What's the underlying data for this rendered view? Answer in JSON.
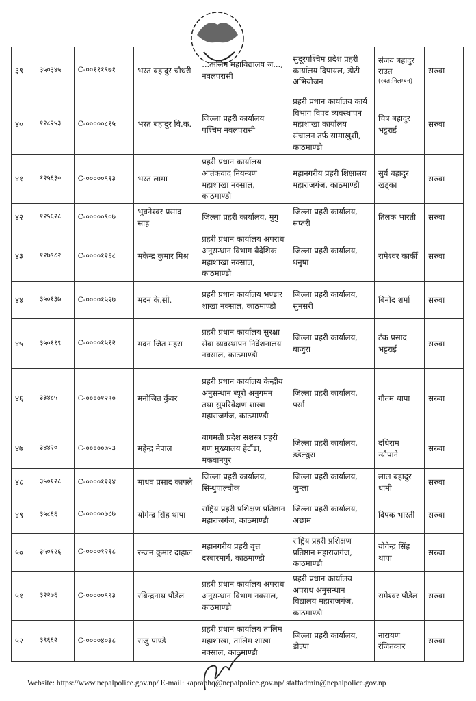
{
  "rows": [
    {
      "sn": "३९",
      "id": "३५०३४५",
      "code": "C-००१११९७१",
      "name": "भरत बहादुर चौधरी",
      "from": "...तालिम महाविद्यालय ज..., नवलपरासी",
      "to": "सुदूरपश्चिम प्रदेश प्रहरी कार्यालय दिपायल, डोटी अभियोजन",
      "replacement": "संजय बहादुर राउत",
      "note": "(स्वत:निलम्बन)",
      "status": "सरुवा"
    },
    {
      "sn": "४०",
      "id": "१२८२५३",
      "code": "C-०००००८१५",
      "name": "भरत बहादुर बि.क.",
      "from": "जिल्ला प्रहरी कार्यालय पश्चिम नवलपरासी",
      "to": "प्रहरी प्रधान कार्यालय कार्य विभाग विपद व्यवस्थापन महाशाखा कार्यालय संचालन तर्फ सामाखुशी, काठमाण्डौ",
      "replacement": "चित्र बहादुर भट्टराई",
      "status": "सरुवा"
    },
    {
      "sn": "४१",
      "id": "१२५६३०",
      "code": "C-०००००९१३",
      "name": "भरत लामा",
      "from": "प्रहरी प्रधान कार्यालय आतंकवाद नियन्त्रण महाशाखा नक्साल, काठमाण्डौ",
      "to": "महानगरीय प्रहरी शिक्षालय महाराजगंज, काठमाण्डौ",
      "replacement": "सुर्य बहादुर खड्का",
      "status": "सरुवा"
    },
    {
      "sn": "४२",
      "id": "१२५६२८",
      "code": "C-०००००९०७",
      "name": "भुवनेश्वर प्रसाद साह",
      "from": "जिल्ला प्रहरी कार्यालय, मुगु",
      "to": "जिल्ला प्रहरी कार्यालय, सप्तरी",
      "replacement": "तिलक भारती",
      "status": "सरुवा"
    },
    {
      "sn": "४३",
      "id": "१२७९८२",
      "code": "C-००००१२६८",
      "name": "मकेन्द्र कुमार मिश्र",
      "from": "प्रहरी प्रधान कार्यालय अपराध अनुसन्धान विभाग बैदेशिक महाशाखा नक्साल, काठमाण्डौ",
      "to": "जिल्ला प्रहरी कार्यालय, धनुषा",
      "replacement": "रामेश्वर कार्की",
      "status": "सरुवा"
    },
    {
      "sn": "४४",
      "id": "३५०१३७",
      "code": "C-००००१५२७",
      "name": "मदन के.सी.",
      "from": "प्रहरी प्रधान कार्यालय भण्डार शाखा नक्साल, काठमाण्डौ",
      "to": "जिल्ला प्रहरी कार्यालय, सुनसरी",
      "replacement": "बिनोद शर्मा",
      "status": "सरुवा"
    },
    {
      "sn": "४५",
      "id": "३५०११९",
      "code": "C-००००१५१२",
      "name": "मदन जित महरा",
      "from": "प्रहरी प्रधान कार्यालय सुरक्षा सेवा व्यवस्थापन निर्देशनालय नक्साल, काठमाण्डौ",
      "to": "जिल्ला प्रहरी कार्यालय, बाजुरा",
      "replacement": "टंक प्रसाद भट्टराई",
      "status": "सरुवा"
    },
    {
      "sn": "४६",
      "id": "३३४८५",
      "code": "C-००००१२९०",
      "name": "मनोजित कुँवर",
      "from": "प्रहरी प्रधान कार्यालय केन्द्रीय अनुसन्धान ब्यूरो अनुगमन तथा सुपरिवेक्षण शाखा महाराजगंज, काठमाण्डौ",
      "to": "जिल्ला प्रहरी कार्यालय, पर्सा",
      "replacement": "गौतम थापा",
      "status": "सरुवा"
    },
    {
      "sn": "४७",
      "id": "३४४२०",
      "code": "C-०००००७५३",
      "name": "महेन्द्र नेपाल",
      "from": "बागमती प्रदेश सशस्त्र प्रहरी गण मुख्यालय हेटौंडा, मकवानपुर",
      "to": "जिल्ला प्रहरी कार्यालय, डडेल्धुरा",
      "replacement": "दधिराम न्यौपाने",
      "status": "सरुवा"
    },
    {
      "sn": "४८",
      "id": "३५०१२८",
      "code": "C-००००१२२४",
      "name": "माधव प्रसाद काफ्ले",
      "from": "जिल्ला प्रहरी कार्यालय, सिन्धुपाल्चोक",
      "to": "जिल्ला प्रहरी कार्यालय, जुम्ला",
      "replacement": "लाल बहादुर धामी",
      "status": "सरुवा"
    },
    {
      "sn": "४९",
      "id": "३५८६६",
      "code": "C-०००००७८७",
      "name": "योगेन्द्र सिंह थापा",
      "from": "राष्ट्रिय प्रहरी प्रशिक्षण प्रतिष्ठान महाराजगंज, काठमाण्डौ",
      "to": "जिल्ला प्रहरी कार्यालय, अछाम",
      "replacement": "दिपक भारती",
      "status": "सरुवा"
    },
    {
      "sn": "५०",
      "id": "३५०१२६",
      "code": "C-००००१२१८",
      "name": "रन्जन कुमार दाहाल",
      "from": "महानगरीय प्रहरी वृत्त दरबारमार्ग, काठमाण्डौ",
      "to": "राष्ट्रिय प्रहरी प्रशिक्षण प्रतिष्ठान महाराजगंज, काठमाण्डौ",
      "replacement": "योगेन्द्र सिंह थापा",
      "status": "सरुवा"
    },
    {
      "sn": "५१",
      "id": "३२२७६",
      "code": "C-०००००९९३",
      "name": "रबिन्द्रनाथ पौडेल",
      "from": "प्रहरी प्रधान कार्यालय अपराध अनुसन्धान विभाग नक्साल, काठमाण्डौ",
      "to": "प्रहरी प्रधान कार्यालय अपराध अनुसन्धान विद्यालय महाराजगंज, काठमाण्डौ",
      "replacement": "रामेश्वर पौडेल",
      "status": "सरुवा"
    },
    {
      "sn": "५२",
      "id": "३९६६२",
      "code": "C-००००४०३८",
      "name": "राजु पाण्डे",
      "from": "प्रहरी प्रधान कार्यालय तालिम महाशाखा, तालिम शाखा नक्साल, काठमाण्डौ",
      "to": "जिल्ला प्रहरी कार्यालय, डोल्पा",
      "replacement": "नारायण रंजितकार",
      "status": "सरुवा"
    }
  ],
  "seal": {
    "text": "नेपाल सरकार गृह मन्त्रालय प्रहरी प्रधान कार्यालय नक्साल"
  },
  "footer": {
    "text": "Website: https://www.nepalpolice.gov.np/ E-mail: kapraphq@nepalpolice.gov.np/ staffadmin@nepalpolice.gov.np"
  }
}
